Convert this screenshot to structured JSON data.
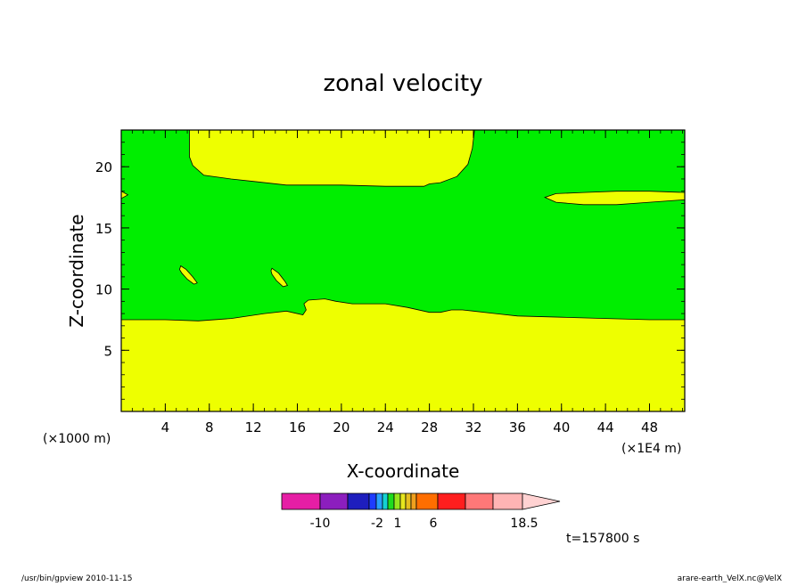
{
  "chart_data": {
    "type": "contour",
    "title": "zonal velocity",
    "xlabel": "X-coordinate",
    "ylabel": "Z-coordinate",
    "x_scale_label": "(×1000 m)",
    "x_unit_label": "(×1E4 m)",
    "xlim": [
      0,
      51.2
    ],
    "ylim": [
      0,
      23
    ],
    "x_ticks": [
      4,
      8,
      12,
      16,
      20,
      24,
      28,
      32,
      36,
      40,
      44,
      48
    ],
    "y_ticks": [
      5,
      10,
      15,
      20
    ],
    "fill_colors": {
      "background": "#00ee00",
      "region": "#eeff00"
    },
    "regions": [
      {
        "name": "lower-yellow-layer",
        "boundary": [
          [
            0,
            7.5
          ],
          [
            4,
            7.5
          ],
          [
            7,
            7.4
          ],
          [
            10,
            7.6
          ],
          [
            13,
            8
          ],
          [
            15,
            8.2
          ],
          [
            16.5,
            7.9
          ],
          [
            16.8,
            8.3
          ],
          [
            16.6,
            8.8
          ],
          [
            17,
            9.1
          ],
          [
            18.5,
            9.2
          ],
          [
            19.5,
            9
          ],
          [
            21,
            8.8
          ],
          [
            24,
            8.8
          ],
          [
            26,
            8.5
          ],
          [
            28,
            8.1
          ],
          [
            29,
            8.1
          ],
          [
            30,
            8.3
          ],
          [
            31,
            8.3
          ],
          [
            32,
            8.2
          ],
          [
            34,
            8
          ],
          [
            36,
            7.8
          ],
          [
            40,
            7.7
          ],
          [
            44,
            7.6
          ],
          [
            48,
            7.5
          ],
          [
            51.2,
            7.5
          ],
          [
            51.2,
            0
          ],
          [
            0,
            0
          ]
        ]
      },
      {
        "name": "upper-yellow-layer",
        "boundary": [
          [
            6.2,
            23
          ],
          [
            6.2,
            20.8
          ],
          [
            6.5,
            20.1
          ],
          [
            7.5,
            19.3
          ],
          [
            10,
            19
          ],
          [
            12,
            18.8
          ],
          [
            15,
            18.5
          ],
          [
            20,
            18.5
          ],
          [
            24,
            18.4
          ],
          [
            27.5,
            18.4
          ],
          [
            28,
            18.6
          ],
          [
            29,
            18.7
          ],
          [
            30.5,
            19.2
          ],
          [
            31.5,
            20.2
          ],
          [
            31.9,
            21.5
          ],
          [
            32.1,
            23
          ]
        ]
      },
      {
        "name": "right-yellow-streak",
        "boundary": [
          [
            38.5,
            17.5
          ],
          [
            39.5,
            17.1
          ],
          [
            42,
            16.9
          ],
          [
            45,
            16.9
          ],
          [
            48,
            17.1
          ],
          [
            51.2,
            17.3
          ],
          [
            51.2,
            17.9
          ],
          [
            48,
            18
          ],
          [
            45,
            18
          ],
          [
            42,
            17.9
          ],
          [
            39.5,
            17.8
          ]
        ]
      },
      {
        "name": "left-edge-yellow-blip",
        "boundary": [
          [
            0,
            17.4
          ],
          [
            0.6,
            17.7
          ],
          [
            0,
            18.0
          ]
        ]
      },
      {
        "name": "small-yellow-patch-1",
        "boundary": [
          [
            5.4,
            11.9
          ],
          [
            5.9,
            11.6
          ],
          [
            6.5,
            11
          ],
          [
            6.9,
            10.5
          ],
          [
            6.6,
            10.4
          ],
          [
            6,
            10.8
          ],
          [
            5.5,
            11.3
          ],
          [
            5.3,
            11.6
          ]
        ]
      },
      {
        "name": "small-yellow-patch-2",
        "boundary": [
          [
            13.7,
            11.7
          ],
          [
            14.3,
            11.3
          ],
          [
            14.9,
            10.6
          ],
          [
            15.1,
            10.3
          ],
          [
            14.7,
            10.2
          ],
          [
            14.1,
            10.7
          ],
          [
            13.7,
            11.2
          ],
          [
            13.6,
            11.5
          ]
        ]
      }
    ],
    "colorbar": {
      "colors": [
        "#e61ea5",
        "#8c1ebe",
        "#1e1ebe",
        "#1e3cff",
        "#28a0ff",
        "#14d2d2",
        "#1edc1e",
        "#96e61e",
        "#e6e61e",
        "#e6be1e",
        "#f0a01e",
        "#ff6e00",
        "#ff1e1e",
        "#ff7878",
        "#ffb4b4",
        "#ffd2d2"
      ],
      "tick_labels": [
        "-10",
        "-2",
        "1",
        "6",
        "18.5"
      ]
    },
    "time_label": "t=157800 s"
  },
  "footer": {
    "left": "/usr/bin/gpview   2010-11-15",
    "right": "arare-earth_VelX.nc@VelX"
  }
}
